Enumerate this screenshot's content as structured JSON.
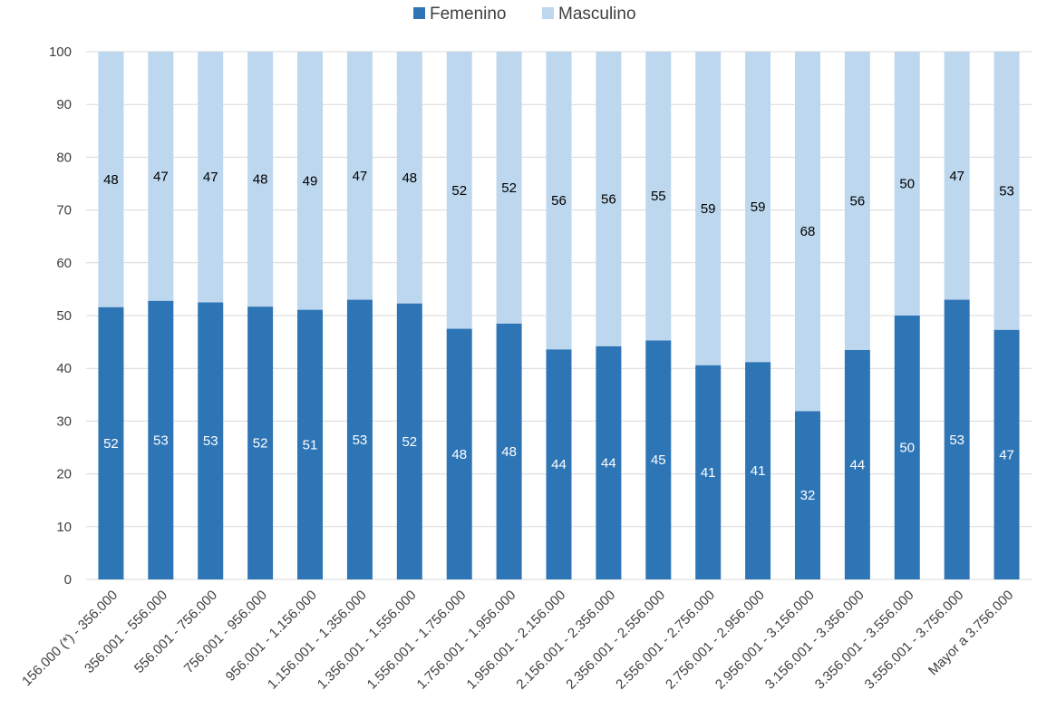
{
  "chart_data": {
    "type": "bar",
    "stacked": true,
    "categories": [
      "156.000 (*) - 356.000",
      "356.001 - 556.000",
      "556.001 - 756.000",
      "756.001 - 956.000",
      "956.001 - 1.156.000",
      "1.156.001 - 1.356.000",
      "1.356.001 - 1.556.000",
      "1.556.001 - 1.756.000",
      "1.756.001 - 1.956.000",
      "1.956.001 - 2.156.000",
      "2.156.001 - 2.356.000",
      "2.356.001 - 2.556.000",
      "2.556.001 - 2.756.000",
      "2.756.001 - 2.956.000",
      "2.956.001 - 3.156.000",
      "3.156.001 - 3.356.000",
      "3.356.001 - 3.556.000",
      "3.556.001 - 3.756.000",
      "Mayor a 3.756.000"
    ],
    "series": [
      {
        "name": "Femenino",
        "color": "#2e75b6",
        "values": [
          51.6,
          52.8,
          52.5,
          51.7,
          51.1,
          53.0,
          52.3,
          47.5,
          48.5,
          43.6,
          44.2,
          45.3,
          40.6,
          41.2,
          31.9,
          43.5,
          50.0,
          53.0,
          47.3
        ],
        "labels": [
          "52",
          "53",
          "53",
          "52",
          "51",
          "53",
          "52",
          "48",
          "48",
          "44",
          "44",
          "45",
          "41",
          "41",
          "32",
          "44",
          "50",
          "53",
          "47"
        ]
      },
      {
        "name": "Masculino",
        "color": "#bdd7ee",
        "values": [
          48.4,
          47.2,
          47.5,
          48.3,
          48.9,
          47.0,
          47.7,
          52.5,
          51.5,
          56.4,
          55.8,
          54.7,
          59.4,
          58.8,
          68.1,
          56.5,
          50.0,
          47.0,
          52.7
        ],
        "labels": [
          "48",
          "47",
          "47",
          "48",
          "49",
          "47",
          "48",
          "52",
          "52",
          "56",
          "56",
          "55",
          "59",
          "59",
          "68",
          "56",
          "50",
          "47",
          "53"
        ]
      }
    ],
    "yticks": [
      "0",
      "10",
      "20",
      "30",
      "40",
      "50",
      "60",
      "70",
      "80",
      "90",
      "100"
    ],
    "ylim": [
      0,
      100
    ],
    "title": "",
    "xlabel": "",
    "ylabel": "",
    "grid": true,
    "legend_position": "top-center",
    "grid_color": "#d9d9d9"
  }
}
